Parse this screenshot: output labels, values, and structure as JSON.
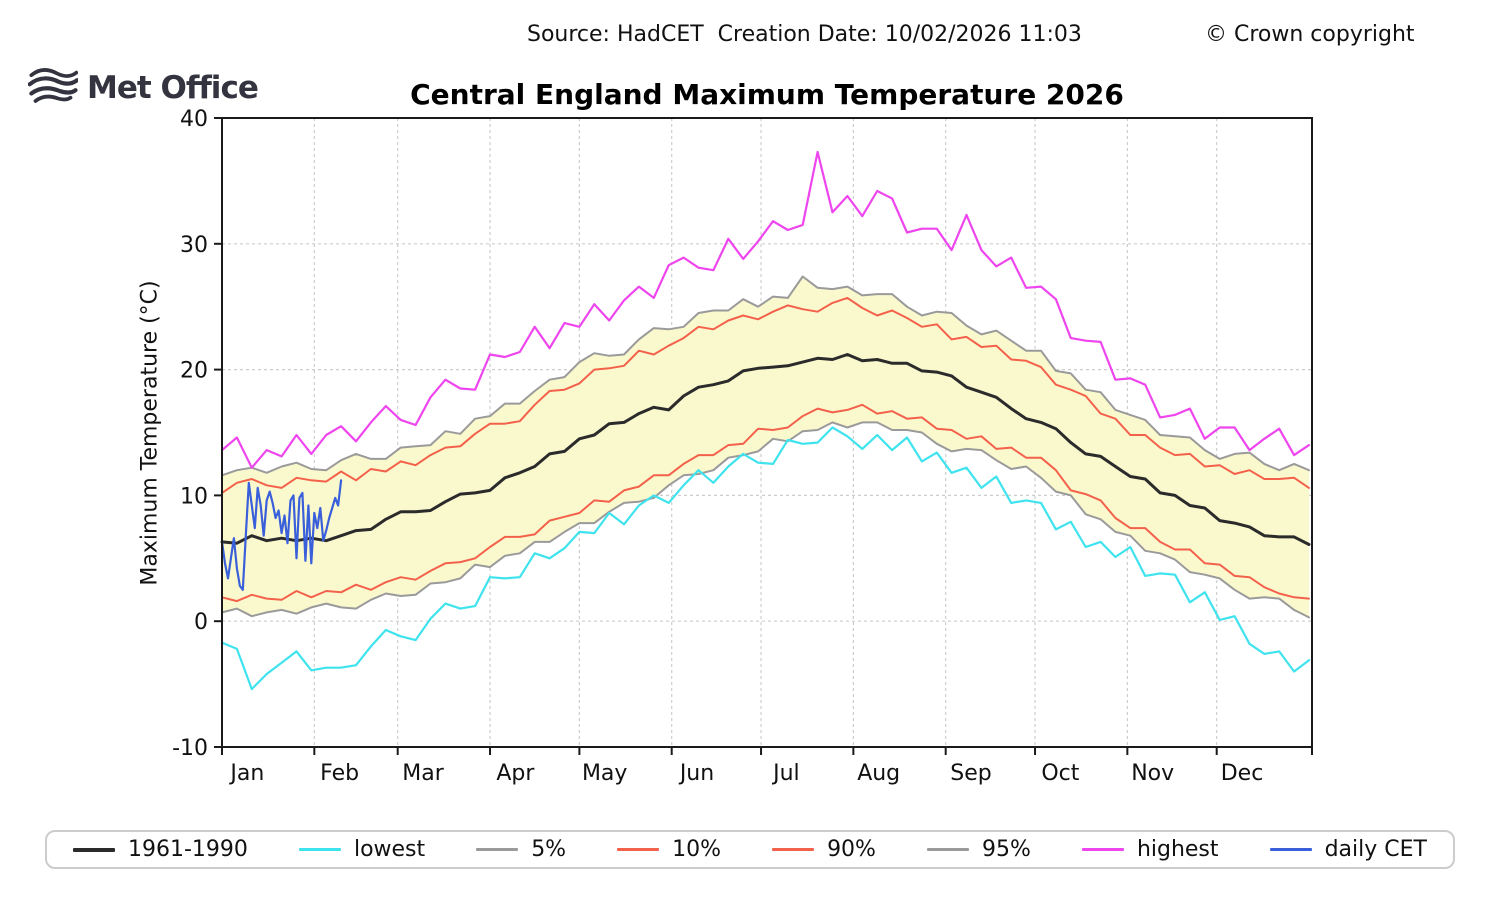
{
  "header": {
    "source_line": "Source: HadCET  Creation Date: 10/02/2026 11:03",
    "copyright": "© Crown copyright"
  },
  "logo": {
    "text": "Met Office",
    "color": "#33343F"
  },
  "chart_data": {
    "type": "line",
    "title": "Central England Maximum Temperature 2026",
    "xlabel": "",
    "ylabel": "Maximum Temperature (°C)",
    "ylim": [
      -10,
      40
    ],
    "yticks": [
      -10,
      0,
      10,
      20,
      30,
      40
    ],
    "axis_days": 366,
    "month_labels": [
      "Jan",
      "Feb",
      "Mar",
      "Apr",
      "May",
      "Jun",
      "Jul",
      "Aug",
      "Sep",
      "Oct",
      "Nov",
      "Dec"
    ],
    "month_start_days": [
      0,
      31,
      59,
      90,
      120,
      151,
      181,
      212,
      243,
      273,
      304,
      334
    ],
    "grid": "dashed",
    "grid_color": "#cdcdcd",
    "axis_color": "#1a1a1a",
    "band": {
      "between": [
        "5%",
        "95%"
      ],
      "color": "#FAF9CE"
    },
    "legend_position": "bottom",
    "legend": [
      "1961-1990",
      "lowest",
      "5%",
      "10%",
      "90%",
      "95%",
      "highest",
      "daily CET"
    ],
    "series": [
      {
        "name": "5%",
        "color": "#9a9a9a",
        "width": 2,
        "step_days": 5,
        "values": [
          0.7,
          1.0,
          0.4,
          0.7,
          0.9,
          0.6,
          1.1,
          1.4,
          1.1,
          1.0,
          1.7,
          2.2,
          2.0,
          2.1,
          3.0,
          3.1,
          3.4,
          4.5,
          4.3,
          5.2,
          5.4,
          6.3,
          6.3,
          7.1,
          7.8,
          7.8,
          8.7,
          9.4,
          9.5,
          9.8,
          10.8,
          11.6,
          11.7,
          12.0,
          13.0,
          13.2,
          13.5,
          14.5,
          14.3,
          15.1,
          15.2,
          15.8,
          15.4,
          15.8,
          15.8,
          15.2,
          15.2,
          15.0,
          14.1,
          13.5,
          13.7,
          13.6,
          12.8,
          12.1,
          12.3,
          11.4,
          10.3,
          10.0,
          8.5,
          8.1,
          7.1,
          6.8,
          5.6,
          5.4,
          4.9,
          3.9,
          3.7,
          3.4,
          2.5,
          1.8,
          1.9,
          1.8,
          0.9,
          0.3
        ]
      },
      {
        "name": "95%",
        "color": "#9a9a9a",
        "width": 2,
        "step_days": 5,
        "values": [
          11.6,
          12.0,
          12.2,
          11.8,
          12.3,
          12.6,
          12.1,
          12.0,
          12.8,
          13.3,
          12.9,
          12.9,
          13.8,
          13.9,
          14.0,
          15.1,
          14.9,
          16.1,
          16.3,
          17.3,
          17.3,
          18.3,
          19.2,
          19.4,
          20.6,
          21.3,
          21.1,
          21.2,
          22.4,
          23.3,
          23.2,
          23.4,
          24.5,
          24.7,
          24.7,
          25.6,
          25.0,
          25.8,
          25.7,
          27.4,
          26.5,
          26.4,
          26.6,
          25.9,
          26.0,
          26.0,
          25.0,
          24.3,
          24.6,
          24.5,
          23.5,
          22.8,
          23.1,
          22.3,
          21.5,
          21.5,
          19.9,
          19.7,
          18.4,
          18.2,
          16.8,
          16.4,
          16.0,
          14.8,
          14.7,
          14.6,
          13.6,
          12.9,
          13.3,
          13.4,
          12.5,
          12.0,
          12.5,
          12.0
        ]
      },
      {
        "name": "10%",
        "color": "#F4614B",
        "width": 2,
        "step_days": 5,
        "values": [
          1.9,
          1.6,
          2.1,
          1.8,
          1.7,
          2.4,
          1.9,
          2.4,
          2.3,
          2.9,
          2.5,
          3.1,
          3.5,
          3.3,
          4.0,
          4.6,
          4.7,
          5.0,
          5.9,
          6.7,
          6.7,
          6.9,
          8.0,
          8.3,
          8.6,
          9.6,
          9.5,
          10.4,
          10.7,
          11.6,
          11.6,
          12.5,
          13.2,
          13.2,
          14.0,
          14.1,
          15.3,
          15.2,
          15.4,
          16.3,
          16.9,
          16.6,
          16.8,
          17.2,
          16.5,
          16.7,
          16.1,
          16.2,
          15.3,
          15.2,
          14.5,
          14.7,
          13.7,
          13.8,
          13.0,
          13.0,
          12.0,
          10.4,
          10.1,
          9.6,
          8.2,
          7.4,
          7.4,
          6.3,
          5.7,
          5.7,
          4.6,
          4.5,
          3.6,
          3.5,
          2.7,
          2.2,
          1.9,
          1.8
        ]
      },
      {
        "name": "90%",
        "color": "#F4614B",
        "width": 2,
        "step_days": 5,
        "values": [
          10.2,
          11.0,
          11.3,
          10.8,
          10.6,
          11.4,
          11.2,
          11.1,
          11.9,
          11.2,
          12.1,
          11.9,
          12.7,
          12.4,
          13.2,
          13.8,
          13.9,
          14.9,
          15.7,
          15.7,
          15.9,
          17.2,
          18.3,
          18.4,
          18.9,
          20.0,
          20.1,
          20.3,
          21.5,
          21.2,
          21.9,
          22.5,
          23.4,
          23.2,
          23.9,
          24.3,
          24.0,
          24.6,
          25.1,
          24.8,
          24.6,
          25.3,
          25.7,
          24.9,
          24.3,
          24.7,
          24.1,
          23.4,
          23.6,
          22.4,
          22.6,
          21.8,
          21.9,
          20.8,
          20.7,
          20.2,
          18.8,
          18.4,
          17.9,
          16.5,
          16.1,
          14.8,
          14.8,
          13.8,
          13.2,
          13.3,
          12.3,
          12.4,
          11.7,
          12.0,
          11.3,
          11.3,
          11.4,
          10.6
        ]
      },
      {
        "name": "highest",
        "color": "#EE45EE",
        "width": 2.2,
        "step_days": 5,
        "values": [
          13.6,
          14.6,
          12.2,
          13.6,
          13.1,
          14.8,
          13.3,
          14.8,
          15.5,
          14.3,
          15.8,
          17.1,
          16.0,
          15.6,
          17.8,
          19.2,
          18.5,
          18.4,
          21.2,
          21.0,
          21.4,
          23.4,
          21.7,
          23.7,
          23.4,
          25.2,
          23.9,
          25.5,
          26.6,
          25.7,
          28.3,
          28.9,
          28.1,
          27.9,
          30.4,
          28.8,
          30.2,
          31.8,
          31.1,
          31.5,
          37.3,
          32.5,
          33.8,
          32.2,
          34.2,
          33.6,
          30.9,
          31.2,
          31.2,
          29.5,
          32.3,
          29.5,
          28.2,
          28.9,
          26.5,
          26.6,
          25.6,
          22.5,
          22.3,
          22.2,
          19.2,
          19.3,
          18.8,
          16.2,
          16.4,
          16.9,
          14.5,
          15.4,
          15.4,
          13.6,
          14.5,
          15.3,
          13.2,
          14.0
        ]
      },
      {
        "name": "lowest",
        "color": "#3FE3EE",
        "width": 2.2,
        "step_days": 5,
        "values": [
          -1.7,
          -2.2,
          -5.4,
          -4.2,
          -3.3,
          -2.4,
          -3.9,
          -3.7,
          -3.7,
          -3.5,
          -2.0,
          -0.7,
          -1.2,
          -1.5,
          0.2,
          1.4,
          1.0,
          1.2,
          3.5,
          3.4,
          3.5,
          5.4,
          5.0,
          5.8,
          7.1,
          7.0,
          8.6,
          7.7,
          9.2,
          10.0,
          9.4,
          10.8,
          12.0,
          11.0,
          12.3,
          13.3,
          12.6,
          12.5,
          14.4,
          14.1,
          14.2,
          15.4,
          14.7,
          13.7,
          14.8,
          13.6,
          14.6,
          12.7,
          13.4,
          11.8,
          12.2,
          10.6,
          11.5,
          9.4,
          9.6,
          9.4,
          7.3,
          7.9,
          5.9,
          6.3,
          5.1,
          5.9,
          3.6,
          3.8,
          3.7,
          1.5,
          2.3,
          0.1,
          0.4,
          -1.8,
          -2.6,
          -2.4,
          -4.0,
          -3.1
        ]
      },
      {
        "name": "1961-1990",
        "color": "#2b2b2b",
        "width": 3,
        "step_days": 5,
        "values": [
          6.3,
          6.2,
          6.8,
          6.4,
          6.6,
          6.4,
          6.6,
          6.4,
          6.8,
          7.2,
          7.3,
          8.1,
          8.7,
          8.7,
          8.8,
          9.5,
          10.1,
          10.2,
          10.4,
          11.4,
          11.8,
          12.3,
          13.3,
          13.5,
          14.5,
          14.8,
          15.7,
          15.8,
          16.5,
          17.0,
          16.8,
          17.9,
          18.6,
          18.8,
          19.1,
          19.9,
          20.1,
          20.2,
          20.3,
          20.6,
          20.9,
          20.8,
          21.2,
          20.7,
          20.8,
          20.5,
          20.5,
          19.9,
          19.8,
          19.5,
          18.6,
          18.2,
          17.8,
          16.9,
          16.1,
          15.8,
          15.3,
          14.2,
          13.3,
          13.1,
          12.3,
          11.5,
          11.3,
          10.2,
          10.0,
          9.2,
          9.0,
          8.0,
          7.8,
          7.5,
          6.8,
          6.7,
          6.7,
          6.1
        ]
      },
      {
        "name": "daily CET",
        "color": "#3A5FDB",
        "width": 2.2,
        "step_days": 1,
        "values": [
          6.3,
          4.6,
          3.4,
          5.0,
          6.6,
          4.2,
          2.8,
          2.5,
          6.8,
          11.0,
          9.2,
          7.4,
          10.6,
          9.2,
          6.8,
          9.6,
          10.3,
          9.4,
          8.2,
          8.8,
          7.0,
          8.4,
          6.2,
          9.6,
          10.0,
          5.0,
          9.8,
          10.2,
          4.8,
          9.2,
          4.6,
          8.6,
          7.4,
          9.0,
          6.4,
          7.2,
          8.2,
          9.0,
          9.8,
          9.2,
          11.2
        ]
      }
    ]
  }
}
